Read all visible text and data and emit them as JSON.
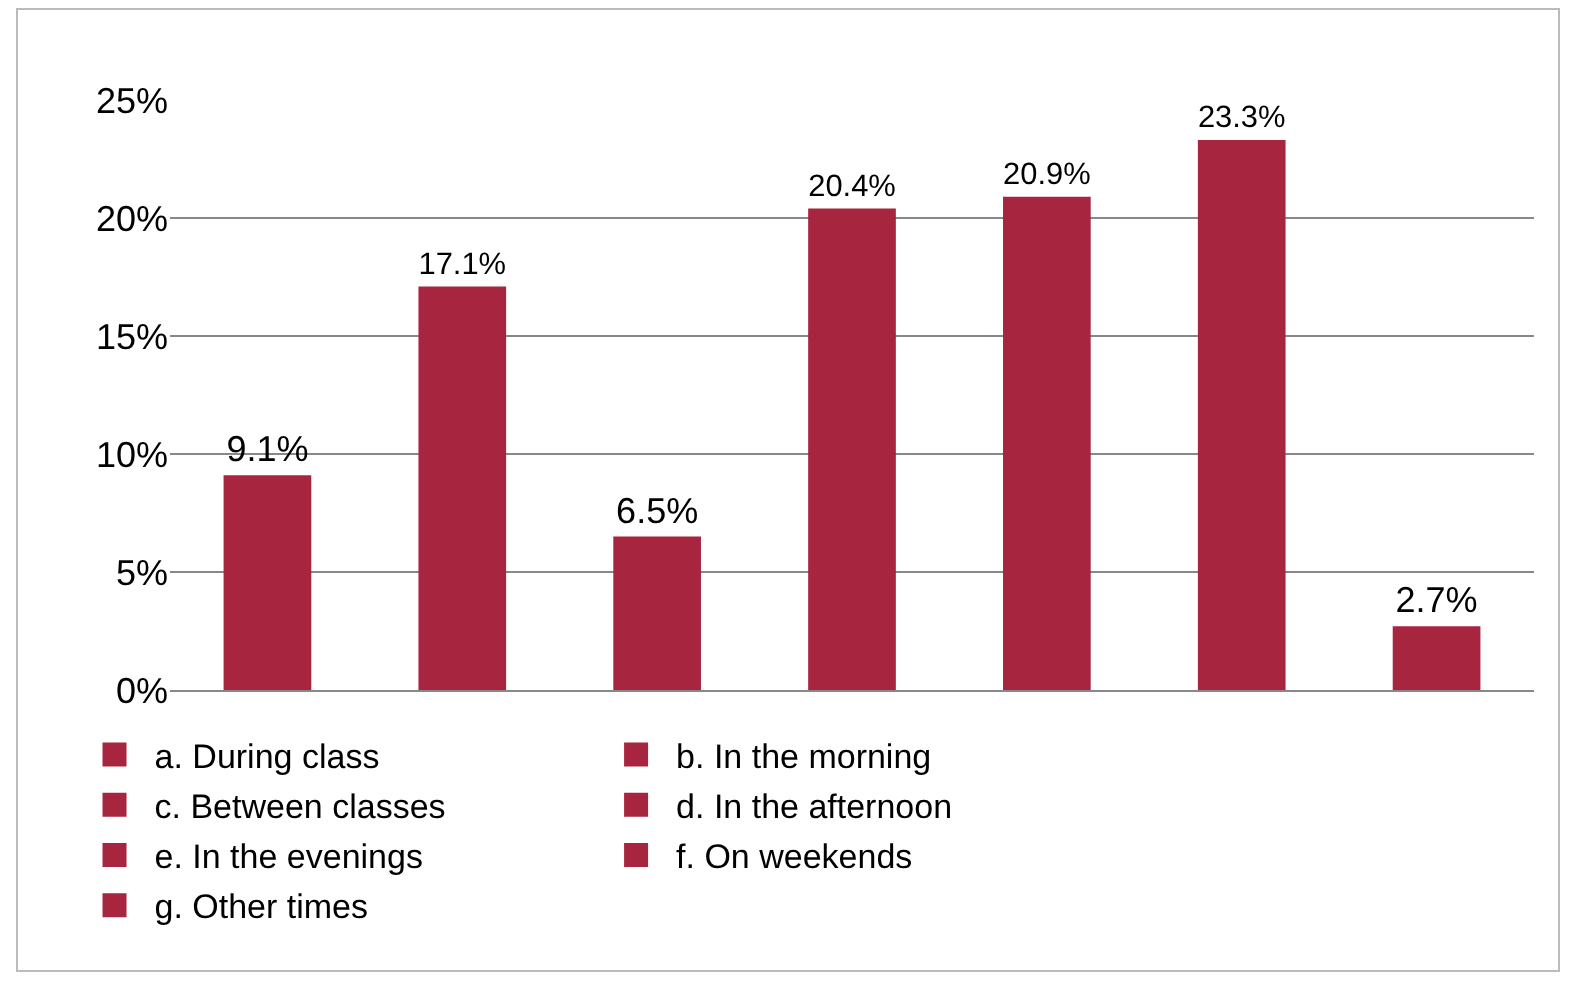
{
  "chart_data": {
    "type": "bar",
    "categories": [
      null,
      null,
      null,
      null,
      null,
      null,
      null
    ],
    "series": [
      {
        "name": "a. During class",
        "color": "#a8253f",
        "values": [
          9.1,
          null,
          null,
          null,
          null,
          null,
          null
        ],
        "value_labels": [
          "9.1%",
          null,
          null,
          null,
          null,
          null,
          null
        ]
      },
      {
        "name": "b. In the morning",
        "color": "#a8253f",
        "values": [
          null,
          17.1,
          null,
          null,
          null,
          null,
          null
        ],
        "value_labels": [
          null,
          "17.1%",
          null,
          null,
          null,
          null,
          null
        ]
      },
      {
        "name": "c. Between classes",
        "color": "#a8253f",
        "values": [
          null,
          null,
          6.5,
          null,
          null,
          null,
          null
        ],
        "value_labels": [
          null,
          null,
          "6.5%",
          null,
          null,
          null,
          null
        ]
      },
      {
        "name": "d. In the afternoon",
        "color": "#a8253f",
        "values": [
          null,
          null,
          null,
          20.4,
          null,
          null,
          null
        ],
        "value_labels": [
          null,
          null,
          null,
          "20.4%",
          null,
          null,
          null
        ]
      },
      {
        "name": "e. In the evenings",
        "color": "#a8253f",
        "values": [
          null,
          null,
          null,
          null,
          20.9,
          null,
          null
        ],
        "value_labels": [
          null,
          null,
          null,
          null,
          "20.9%",
          null,
          null
        ]
      },
      {
        "name": "f. On weekends",
        "color": "#a8253f",
        "values": [
          null,
          null,
          null,
          null,
          null,
          23.3,
          null
        ],
        "value_labels": [
          null,
          null,
          null,
          null,
          null,
          "23.3%",
          null
        ]
      },
      {
        "name": "g. Other times",
        "color": "#a8253f",
        "values": [
          null,
          null,
          null,
          null,
          null,
          null,
          2.7
        ],
        "value_labels": [
          null,
          null,
          null,
          null,
          null,
          null,
          "2.7%"
        ]
      }
    ],
    "ylim": [
      0,
      25
    ],
    "yticks": [
      {
        "value": 0,
        "label": "0%"
      },
      {
        "value": 5,
        "label": "5%"
      },
      {
        "value": 10,
        "label": "10%"
      },
      {
        "value": 15,
        "label": "15%"
      },
      {
        "value": 20,
        "label": "20%"
      },
      {
        "value": 25,
        "label": "25%"
      }
    ],
    "grid": "y",
    "legend": "bottom"
  }
}
